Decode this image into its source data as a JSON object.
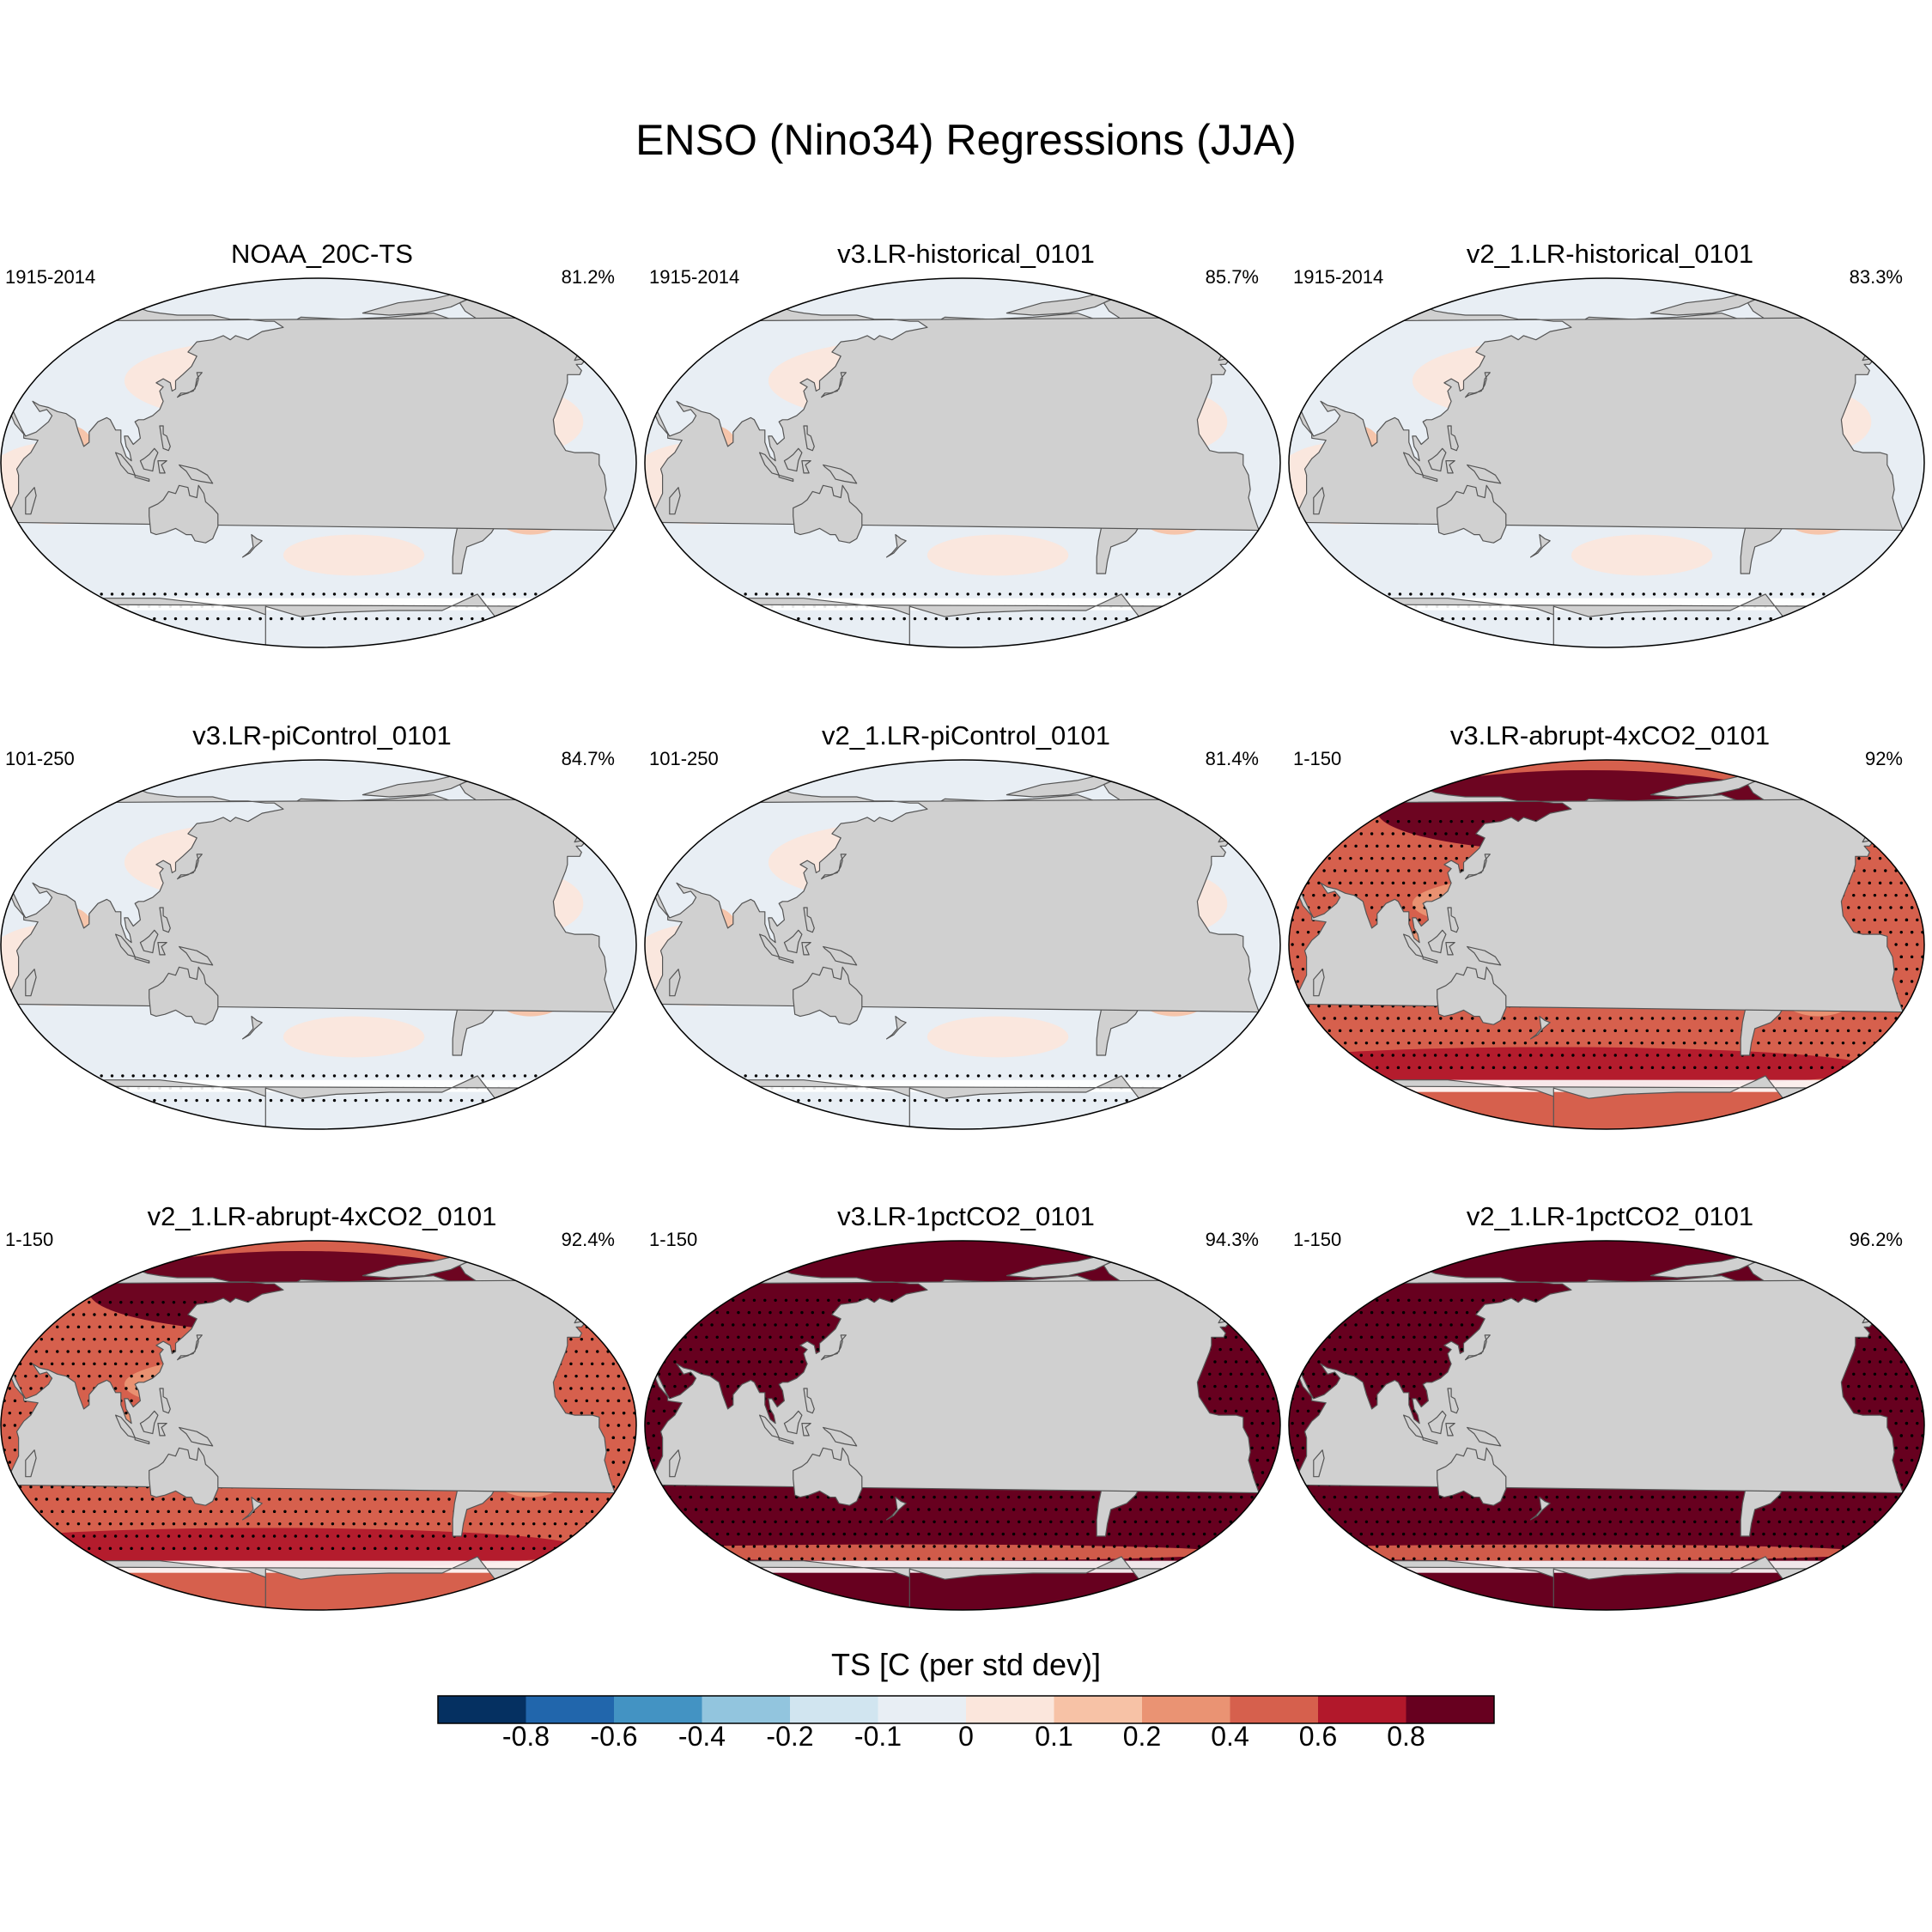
{
  "title": "ENSO (Nino34) Regressions (JJA)",
  "colorbar": {
    "title": "TS [C (per std dev)]",
    "colors": [
      "#053061",
      "#2166ac",
      "#4393c3",
      "#92c5de",
      "#d1e5f0",
      "#e8eef4",
      "#fbe6dc",
      "#f7c2a6",
      "#ea9373",
      "#d6604d",
      "#b2182b",
      "#67001f"
    ],
    "labels": [
      "-0.8",
      "-0.6",
      "-0.4",
      "-0.2",
      "-0.1",
      "0",
      "0.1",
      "0.2",
      "0.4",
      "0.6",
      "0.8"
    ],
    "levels": [
      -0.8,
      -0.6,
      -0.4,
      -0.2,
      -0.1,
      0,
      0.1,
      0.2,
      0.4,
      0.6,
      0.8
    ]
  },
  "style": {
    "land": "#d0d0d0",
    "coast": "#555555",
    "stipple": "#000000",
    "ice": "#ffffff"
  },
  "panels": [
    {
      "title": "NOAA_20C-TS",
      "left": "1915-2014",
      "right": "81.2%",
      "regime": "obs"
    },
    {
      "title": "v3.LR-historical_0101",
      "left": "1915-2014",
      "right": "85.7%",
      "regime": "hist"
    },
    {
      "title": "v2_1.LR-historical_0101",
      "left": "1915-2014",
      "right": "83.3%",
      "regime": "hist"
    },
    {
      "title": "v3.LR-piControl_0101",
      "left": "101-250",
      "right": "84.7%",
      "regime": "pi"
    },
    {
      "title": "v2_1.LR-piControl_0101",
      "left": "101-250",
      "right": "81.4%",
      "regime": "pi"
    },
    {
      "title": "v3.LR-abrupt-4xCO2_0101",
      "left": "1-150",
      "right": "92%",
      "regime": "warm"
    },
    {
      "title": "v2_1.LR-abrupt-4xCO2_0101",
      "left": "1-150",
      "right": "92.4%",
      "regime": "warm"
    },
    {
      "title": "v3.LR-1pctCO2_0101",
      "left": "1-150",
      "right": "94.3%",
      "regime": "hot"
    },
    {
      "title": "v2_1.LR-1pctCO2_0101",
      "left": "1-150",
      "right": "96.2%",
      "regime": "hot"
    }
  ]
}
